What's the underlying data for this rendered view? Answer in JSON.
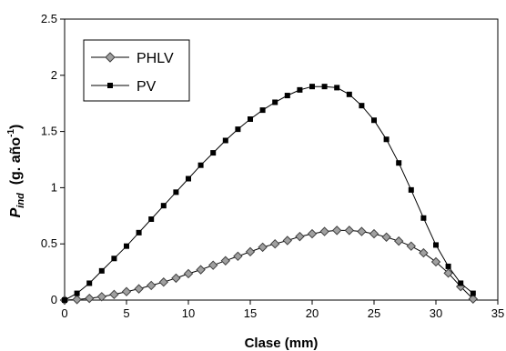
{
  "chart_data": {
    "type": "line",
    "xlabel": "Clase (mm)",
    "ylabel": {
      "main": "P",
      "sub": "ind",
      "rest": "  (g. año",
      "sup": "-1",
      "close": ")"
    },
    "xlim": [
      0,
      35
    ],
    "ylim": [
      0,
      2.5
    ],
    "xticks": [
      0,
      5,
      10,
      15,
      20,
      25,
      30,
      35
    ],
    "yticks": [
      0,
      0.5,
      1,
      1.5,
      2,
      2.5
    ],
    "ytick_labels": [
      "0",
      "0.5",
      "1",
      "1.5",
      "2",
      "2.5"
    ],
    "grid": false,
    "legend": "top-left",
    "series": [
      {
        "name": "PHLV",
        "marker": "diamond",
        "color": "#a0a0a0",
        "x": [
          0,
          1,
          2,
          3,
          4,
          5,
          6,
          7,
          8,
          9,
          10,
          11,
          12,
          13,
          14,
          15,
          16,
          17,
          18,
          19,
          20,
          21,
          22,
          23,
          24,
          25,
          26,
          27,
          28,
          29,
          30,
          31,
          32,
          33
        ],
        "y": [
          0,
          0.005,
          0.015,
          0.03,
          0.05,
          0.075,
          0.1,
          0.13,
          0.16,
          0.195,
          0.235,
          0.27,
          0.31,
          0.35,
          0.39,
          0.43,
          0.47,
          0.5,
          0.53,
          0.565,
          0.59,
          0.61,
          0.62,
          0.62,
          0.61,
          0.59,
          0.56,
          0.525,
          0.48,
          0.42,
          0.34,
          0.24,
          0.12,
          0.01
        ]
      },
      {
        "name": "PV",
        "marker": "square",
        "color": "#000000",
        "x": [
          0,
          1,
          2,
          3,
          4,
          5,
          6,
          7,
          8,
          9,
          10,
          11,
          12,
          13,
          14,
          15,
          16,
          17,
          18,
          19,
          20,
          21,
          22,
          23,
          24,
          25,
          26,
          27,
          28,
          29,
          30,
          31,
          32,
          33
        ],
        "y": [
          0,
          0.06,
          0.15,
          0.26,
          0.37,
          0.48,
          0.6,
          0.72,
          0.84,
          0.96,
          1.08,
          1.2,
          1.31,
          1.42,
          1.52,
          1.61,
          1.69,
          1.76,
          1.82,
          1.87,
          1.9,
          1.9,
          1.89,
          1.83,
          1.73,
          1.6,
          1.43,
          1.22,
          0.98,
          0.73,
          0.49,
          0.3,
          0.15,
          0.06
        ]
      }
    ]
  }
}
